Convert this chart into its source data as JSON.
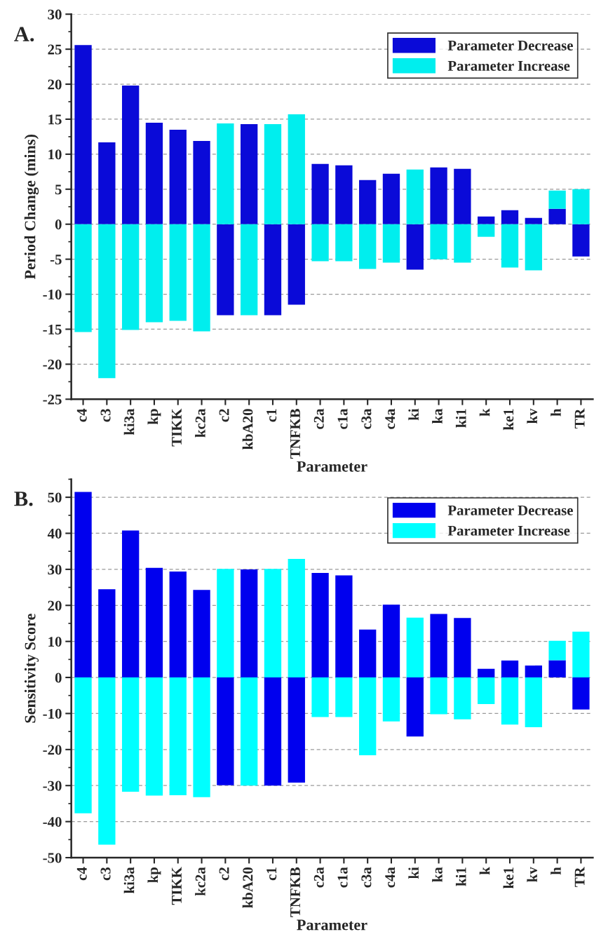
{
  "chart_data": [
    {
      "type": "bar",
      "ylabel": "Period Change (mins)",
      "xlabel": "Parameter",
      "annotations": [
        "A."
      ],
      "categories": [
        "c4",
        "c3",
        "ki3a",
        "kp",
        "TIKK",
        "kc2a",
        "c2",
        "kbA20",
        "c1",
        "TNFKB",
        "c2a",
        "c1a",
        "c3a",
        "c4a",
        "ki",
        "ka",
        "ki1",
        "k",
        "ke1",
        "kv",
        "h",
        "TR"
      ],
      "series": [
        {
          "name": "Parameter Decrease",
          "color": "#0a0ad8",
          "values": [
            25.6,
            11.7,
            19.8,
            14.5,
            13.5,
            11.9,
            -13.0,
            14.3,
            -13.0,
            -11.5,
            8.6,
            8.4,
            6.3,
            7.2,
            -6.5,
            8.1,
            7.9,
            1.1,
            2.0,
            0.9,
            2.2,
            -4.6
          ]
        },
        {
          "name": "Parameter Increase",
          "color": "#00eeee",
          "values": [
            -15.4,
            -22.0,
            -15.1,
            -14.0,
            -13.8,
            -15.3,
            14.4,
            -13.0,
            14.3,
            15.7,
            -5.3,
            -5.3,
            -6.4,
            -5.5,
            7.8,
            -5.0,
            -5.5,
            -1.8,
            -6.2,
            -6.6,
            2.6,
            5.0
          ]
        }
      ],
      "stacked": true,
      "ylim": [
        -25,
        30
      ],
      "yticks": [
        -25,
        -20,
        -15,
        -10,
        -5,
        0,
        5,
        10,
        15,
        20,
        25,
        30
      ],
      "grid": "y",
      "legend": "top right"
    },
    {
      "type": "bar",
      "ylabel": "Sensitivity Score",
      "xlabel": "Parameter",
      "annotations": [
        "B."
      ],
      "categories": [
        "c4",
        "c3",
        "ki3a",
        "kp",
        "TIKK",
        "kc2a",
        "c2",
        "kbA20",
        "c1",
        "TNFKB",
        "c2a",
        "c1a",
        "c3a",
        "c4a",
        "ki",
        "ka",
        "ki1",
        "k",
        "ke1",
        "kv",
        "h",
        "TR"
      ],
      "series": [
        {
          "name": "Parameter Decrease",
          "color": "#0000ee",
          "values": [
            51.5,
            24.5,
            40.8,
            30.4,
            29.4,
            24.3,
            -29.9,
            30.0,
            -30.0,
            -29.2,
            29.0,
            28.3,
            13.3,
            20.2,
            -16.4,
            17.6,
            16.5,
            2.4,
            4.7,
            3.3,
            4.8,
            -8.9
          ]
        },
        {
          "name": "Parameter Increase",
          "color": "#00ffff",
          "values": [
            -37.7,
            -46.4,
            -31.7,
            -32.8,
            -32.7,
            -33.2,
            30.1,
            -30.0,
            30.1,
            32.9,
            -11.0,
            -11.0,
            -21.6,
            -12.2,
            16.6,
            -10.2,
            -11.6,
            -7.4,
            -13.1,
            -13.8,
            5.4,
            12.7
          ]
        }
      ],
      "stacked": true,
      "ylim": [
        -50,
        55
      ],
      "yticks": [
        -50,
        -40,
        -30,
        -20,
        -10,
        0,
        10,
        20,
        30,
        40,
        50
      ],
      "grid": "y",
      "legend": "top right"
    }
  ]
}
